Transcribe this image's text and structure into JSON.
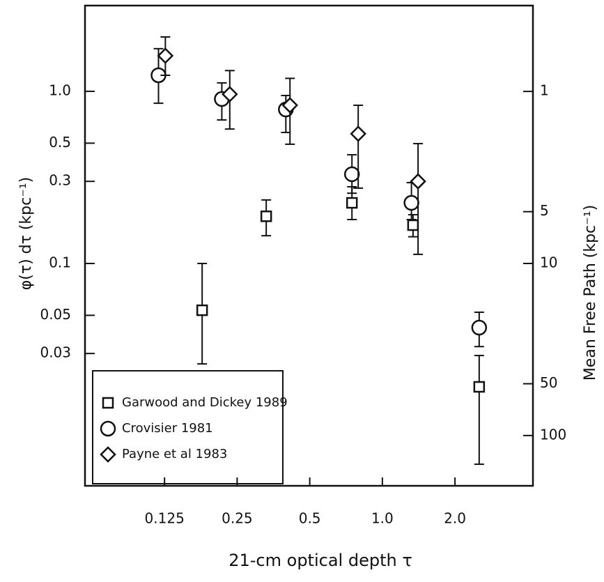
{
  "chart_data": {
    "type": "scatter",
    "x_label": "21-cm optical depth τ",
    "y_label": "φ(τ) dτ (kpc⁻¹)",
    "y2_label": "Mean Free Path (kpc⁻¹)",
    "log_x": true,
    "log_y": true,
    "log_y2": true,
    "xlim": [
      0.0585,
      4.21
    ],
    "ylim": [
      0.00511,
      3.15
    ],
    "y2lim": [
      196,
      0.317
    ],
    "xticks": [
      0.125,
      0.25,
      0.5,
      {
        "value": 1,
        "label": "1.0"
      },
      {
        "value": 2,
        "label": "2.0"
      }
    ],
    "yticks": [
      {
        "value": 1,
        "label": "1.0"
      },
      0.5,
      0.3,
      0.1,
      0.05,
      0.03
    ],
    "y2ticks": [
      1,
      5,
      10,
      50,
      100
    ],
    "legend": "lower left",
    "series": [
      {
        "name": "Garwood and Dickey 1989",
        "marker": "square",
        "color": "#111111",
        "x": [
          0.179,
          0.33,
          0.748,
          1.34,
          2.52
        ],
        "values": [
          0.0535,
          0.188,
          0.225,
          0.167,
          0.0192
        ],
        "ylow": [
          0.0261,
          0.145,
          0.18,
          0.143,
          0.00682
        ],
        "yhigh": [
          0.1,
          0.234,
          0.279,
          0.192,
          0.0292
        ]
      },
      {
        "name": "Crovisier 1981",
        "marker": "circle",
        "color": "#111111",
        "x": [
          0.118,
          0.216,
          0.398,
          0.748,
          1.32,
          2.52
        ],
        "values": [
          1.24,
          0.903,
          0.785,
          0.33,
          0.225,
          0.0424
        ],
        "ylow": [
          0.853,
          0.682,
          0.577,
          0.256,
          0.18,
          0.0329
        ],
        "yhigh": [
          1.77,
          1.12,
          0.946,
          0.428,
          0.295,
          0.0521
        ]
      },
      {
        "name": "Payne et al 1983",
        "marker": "diamond",
        "color": "#111111",
        "x": [
          0.126,
          0.233,
          0.414,
          0.794,
          1.406
        ],
        "values": [
          1.61,
          0.963,
          0.83,
          0.567,
          0.3
        ],
        "ylow": [
          1.24,
          0.604,
          0.493,
          0.274,
          0.113
        ],
        "yhigh": [
          2.07,
          1.32,
          1.19,
          0.83,
          0.497
        ]
      }
    ]
  }
}
